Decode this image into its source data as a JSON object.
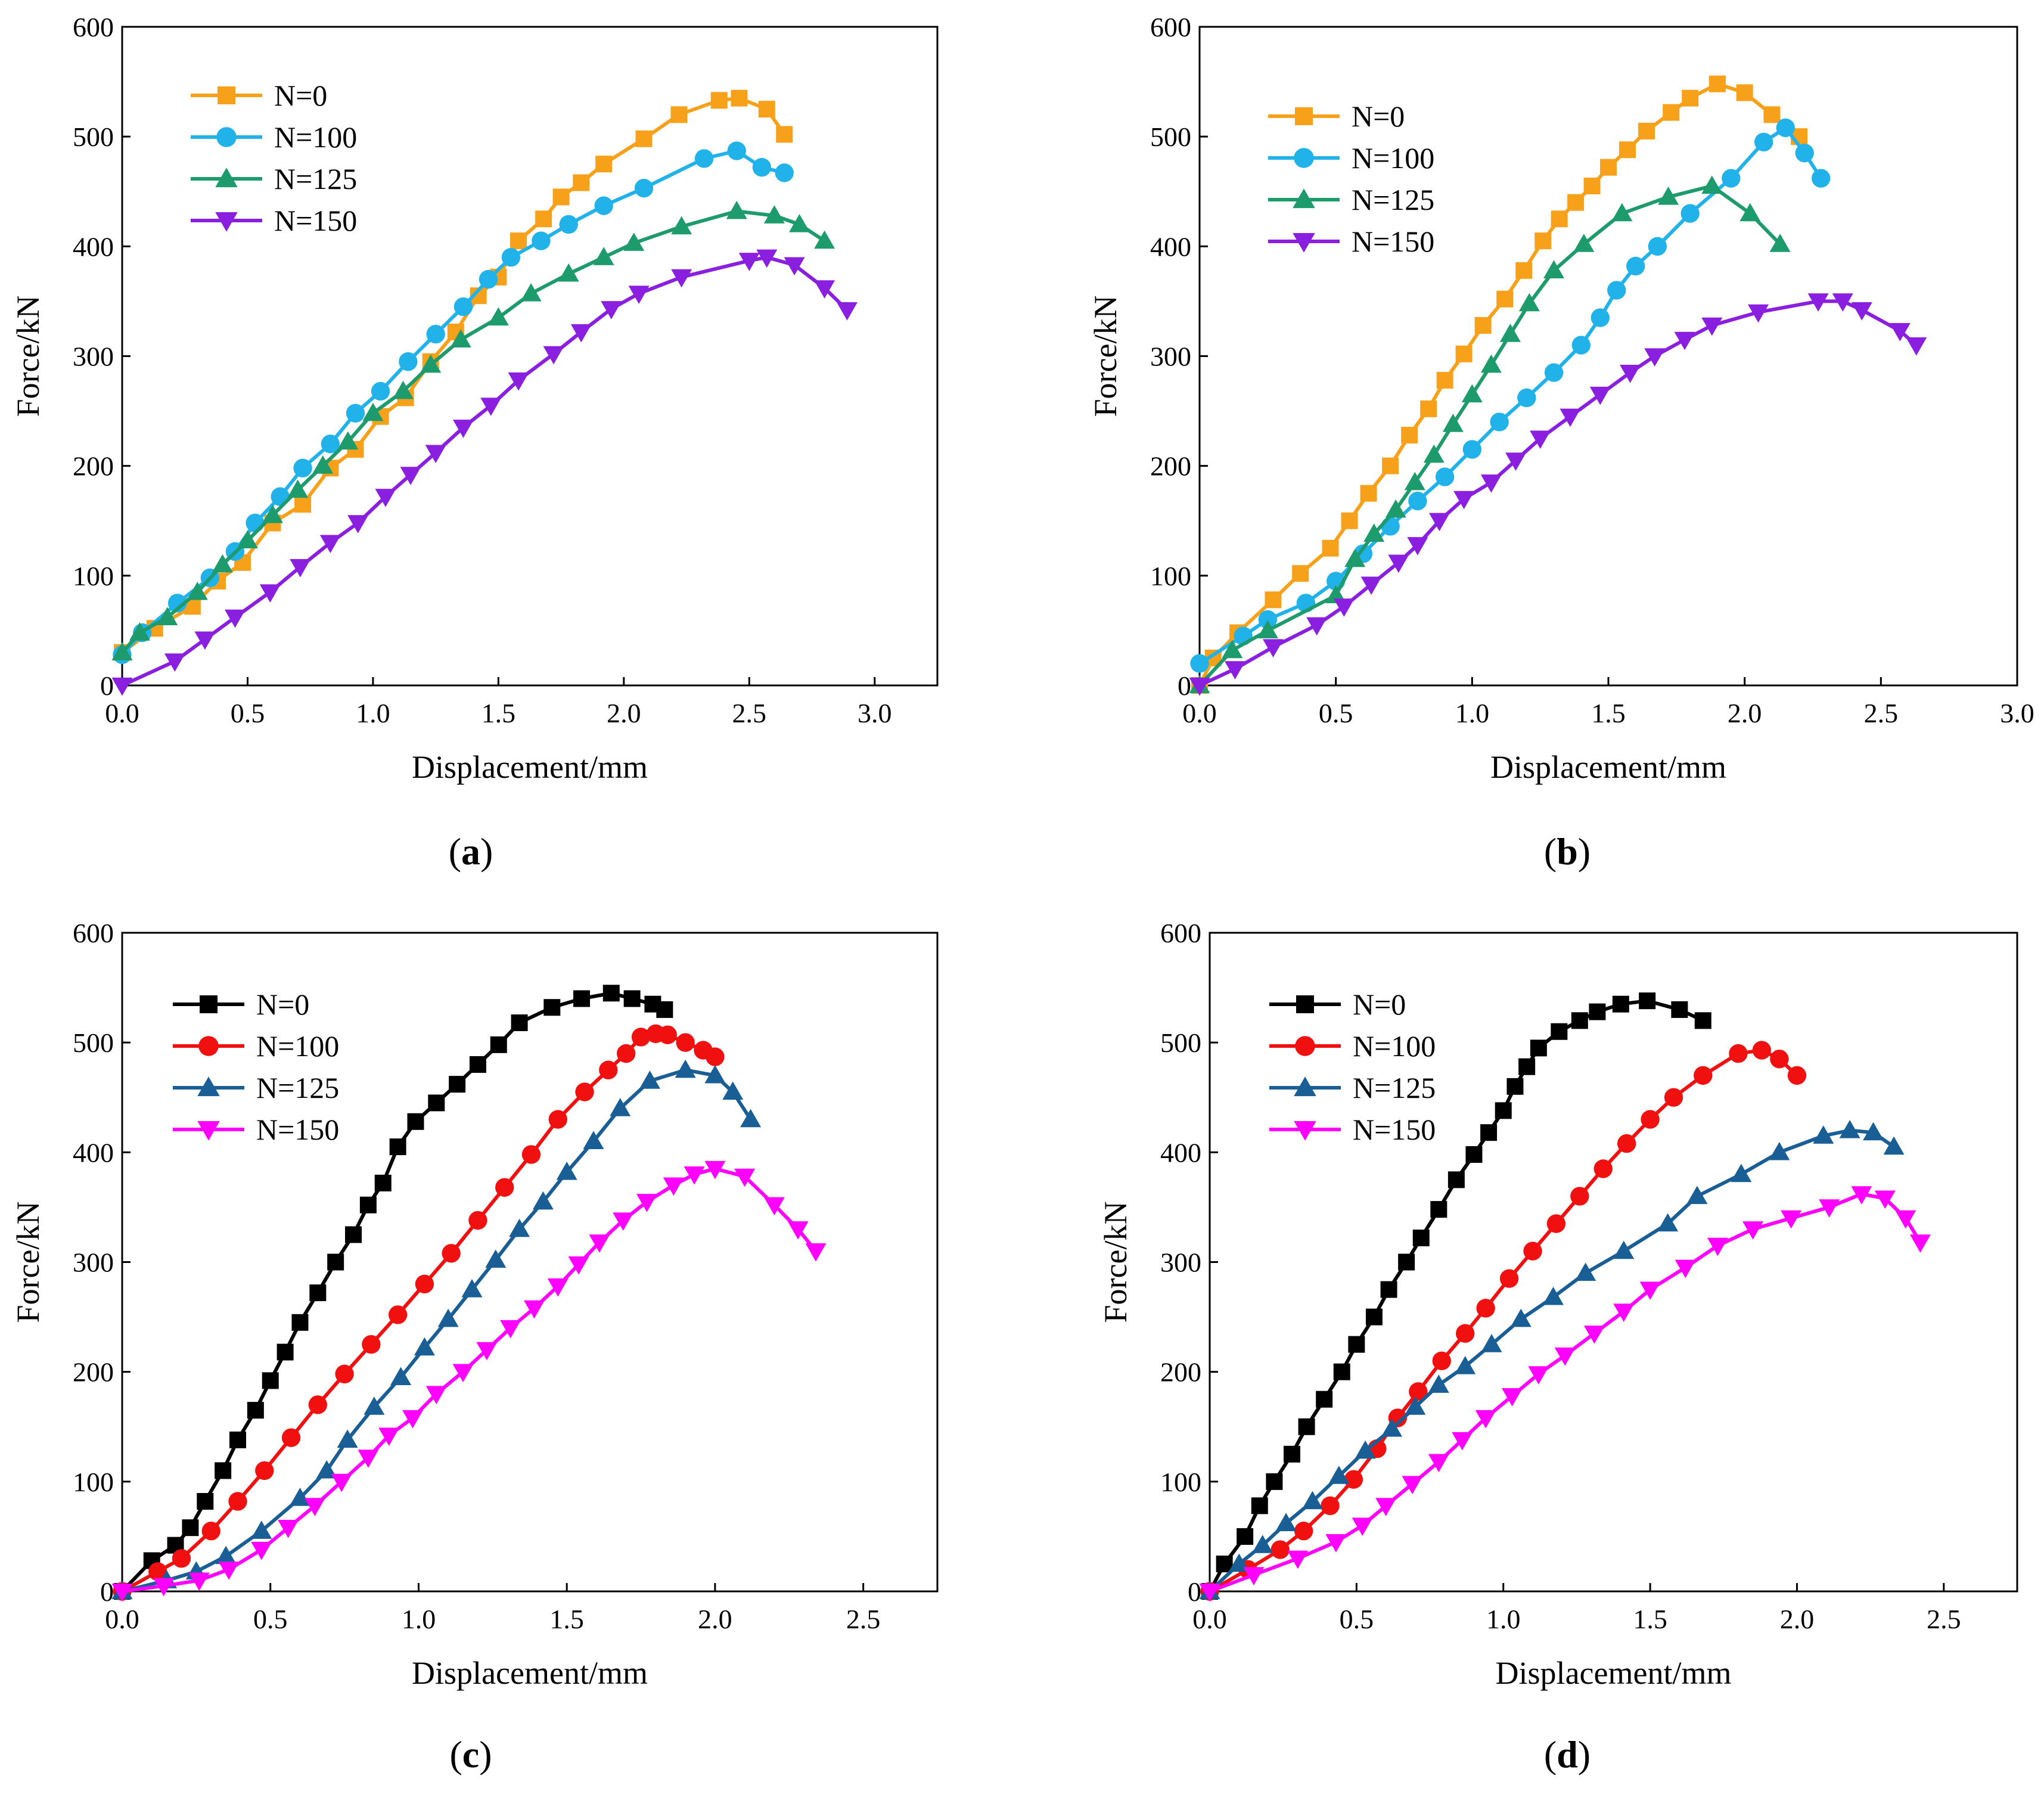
{
  "chart_data": [
    {
      "panel_label": "a",
      "type": "line",
      "xlabel": "Displacement/mm",
      "ylabel": "Force/kN",
      "xlim": [
        0,
        3.25
      ],
      "ylim": [
        0,
        600
      ],
      "xticks": [
        "0.0",
        "0.5",
        "1.0",
        "1.5",
        "2.0",
        "2.5",
        "3.0"
      ],
      "yticks": [
        "0",
        "100",
        "200",
        "300",
        "400",
        "500",
        "600"
      ],
      "legend_position": "top-left",
      "series": [
        {
          "name": "N=0",
          "color": "#F7A11A",
          "marker": "square",
          "x": [
            0.0,
            0.13,
            0.28,
            0.38,
            0.48,
            0.6,
            0.72,
            0.83,
            0.93,
            1.03,
            1.13,
            1.23,
            1.33,
            1.42,
            1.5,
            1.58,
            1.68,
            1.75,
            1.83,
            1.92,
            2.08,
            2.22,
            2.38,
            2.46,
            2.57,
            2.64
          ],
          "y": [
            30,
            52,
            72,
            95,
            112,
            148,
            165,
            198,
            215,
            245,
            262,
            295,
            322,
            355,
            372,
            405,
            425,
            445,
            458,
            475,
            498,
            520,
            533,
            535,
            525,
            502
          ]
        },
        {
          "name": "N=100",
          "color": "#20B2E8",
          "marker": "circle",
          "x": [
            0.0,
            0.08,
            0.22,
            0.35,
            0.45,
            0.53,
            0.63,
            0.72,
            0.83,
            0.93,
            1.03,
            1.14,
            1.25,
            1.36,
            1.46,
            1.55,
            1.67,
            1.78,
            1.92,
            2.08,
            2.32,
            2.45,
            2.55,
            2.64
          ],
          "y": [
            28,
            48,
            75,
            98,
            122,
            148,
            172,
            198,
            220,
            248,
            268,
            295,
            320,
            345,
            370,
            390,
            405,
            420,
            437,
            453,
            480,
            487,
            472,
            467
          ]
        },
        {
          "name": "N=125",
          "color": "#1E9B6C",
          "marker": "triangle-up",
          "x": [
            0.0,
            0.07,
            0.18,
            0.3,
            0.4,
            0.5,
            0.6,
            0.7,
            0.8,
            0.9,
            1.0,
            1.12,
            1.23,
            1.35,
            1.5,
            1.63,
            1.78,
            1.92,
            2.04,
            2.23,
            2.45,
            2.6,
            2.7,
            2.8
          ],
          "y": [
            30,
            48,
            62,
            85,
            110,
            132,
            155,
            178,
            200,
            222,
            248,
            268,
            292,
            315,
            335,
            357,
            375,
            390,
            403,
            418,
            432,
            428,
            420,
            405
          ]
        },
        {
          "name": "N=150",
          "color": "#8B1FE0",
          "marker": "triangle-down",
          "x": [
            0.0,
            0.21,
            0.33,
            0.45,
            0.59,
            0.71,
            0.83,
            0.94,
            1.05,
            1.15,
            1.25,
            1.36,
            1.47,
            1.58,
            1.72,
            1.83,
            1.95,
            2.06,
            2.23,
            2.5,
            2.57,
            2.68,
            2.8,
            2.89
          ],
          "y": [
            0,
            22,
            42,
            62,
            85,
            108,
            130,
            148,
            172,
            192,
            212,
            235,
            255,
            278,
            302,
            322,
            343,
            357,
            372,
            387,
            390,
            383,
            362,
            342
          ]
        }
      ]
    },
    {
      "panel_label": "b",
      "type": "line",
      "xlabel": "Displacement/mm",
      "ylabel": "Force/kN",
      "xlim": [
        0,
        3.0
      ],
      "ylim": [
        0,
        600
      ],
      "xticks": [
        "0.0",
        "0.5",
        "1.0",
        "1.5",
        "2.0",
        "2.5",
        "3.0"
      ],
      "yticks": [
        "0",
        "100",
        "200",
        "300",
        "400",
        "500",
        "600"
      ],
      "legend_position": "top-left",
      "series": [
        {
          "name": "N=0",
          "color": "#F7A11A",
          "marker": "square",
          "x": [
            0.0,
            0.05,
            0.14,
            0.27,
            0.37,
            0.48,
            0.55,
            0.62,
            0.7,
            0.77,
            0.84,
            0.9,
            0.97,
            1.04,
            1.12,
            1.19,
            1.26,
            1.32,
            1.38,
            1.44,
            1.5,
            1.57,
            1.64,
            1.73,
            1.8,
            1.9,
            2.0,
            2.1,
            2.2
          ],
          "y": [
            0,
            25,
            48,
            78,
            102,
            125,
            150,
            175,
            200,
            228,
            252,
            278,
            302,
            328,
            352,
            378,
            405,
            425,
            440,
            455,
            472,
            488,
            505,
            522,
            535,
            548,
            540,
            520,
            500
          ]
        },
        {
          "name": "N=100",
          "color": "#20B2E8",
          "marker": "circle",
          "x": [
            0.0,
            0.16,
            0.25,
            0.39,
            0.5,
            0.6,
            0.7,
            0.8,
            0.9,
            1.0,
            1.1,
            1.2,
            1.3,
            1.4,
            1.47,
            1.53,
            1.6,
            1.68,
            1.8,
            1.95,
            2.07,
            2.15,
            2.22,
            2.28
          ],
          "y": [
            20,
            45,
            60,
            75,
            95,
            120,
            145,
            168,
            190,
            215,
            240,
            262,
            285,
            310,
            335,
            360,
            382,
            400,
            430,
            462,
            495,
            508,
            485,
            462
          ]
        },
        {
          "name": "N=125",
          "color": "#1E9B6C",
          "marker": "triangle-up",
          "x": [
            0.0,
            0.12,
            0.25,
            0.5,
            0.57,
            0.64,
            0.72,
            0.79,
            0.86,
            0.93,
            1.0,
            1.07,
            1.14,
            1.21,
            1.3,
            1.41,
            1.55,
            1.72,
            1.88,
            2.02,
            2.13
          ],
          "y": [
            0,
            32,
            50,
            82,
            115,
            138,
            160,
            185,
            210,
            238,
            265,
            292,
            320,
            348,
            378,
            402,
            430,
            445,
            455,
            430,
            402
          ]
        },
        {
          "name": "N=150",
          "color": "#8B1FE0",
          "marker": "triangle-down",
          "x": [
            0.0,
            0.13,
            0.27,
            0.43,
            0.53,
            0.63,
            0.73,
            0.8,
            0.88,
            0.97,
            1.07,
            1.16,
            1.25,
            1.36,
            1.47,
            1.58,
            1.67,
            1.78,
            1.88,
            2.05,
            2.27,
            2.36,
            2.43,
            2.57,
            2.63
          ],
          "y": [
            0,
            15,
            35,
            55,
            72,
            92,
            112,
            128,
            150,
            170,
            185,
            205,
            225,
            245,
            265,
            285,
            300,
            315,
            328,
            340,
            350,
            350,
            342,
            323,
            310
          ]
        }
      ]
    },
    {
      "panel_label": "c",
      "type": "line",
      "xlabel": "Displacement/mm",
      "ylabel": "Force/kN",
      "xlim": [
        0,
        2.75
      ],
      "ylim": [
        0,
        600
      ],
      "xticks": [
        "0.0",
        "0.5",
        "1.0",
        "1.5",
        "2.0",
        "2.5"
      ],
      "yticks": [
        "0",
        "100",
        "200",
        "300",
        "400",
        "500",
        "600"
      ],
      "legend_position": "top-left",
      "series": [
        {
          "name": "N=0",
          "color": "#000000",
          "marker": "square",
          "x": [
            0.0,
            0.1,
            0.18,
            0.23,
            0.28,
            0.34,
            0.39,
            0.45,
            0.5,
            0.55,
            0.6,
            0.66,
            0.72,
            0.78,
            0.83,
            0.88,
            0.93,
            0.99,
            1.06,
            1.13,
            1.2,
            1.27,
            1.34,
            1.45,
            1.55,
            1.65,
            1.72,
            1.79,
            1.83
          ],
          "y": [
            0,
            28,
            42,
            58,
            82,
            110,
            138,
            165,
            192,
            218,
            245,
            272,
            300,
            325,
            352,
            372,
            405,
            428,
            445,
            462,
            480,
            498,
            518,
            532,
            540,
            545,
            540,
            535,
            530
          ]
        },
        {
          "name": "N=100",
          "color": "#F01010",
          "marker": "circle",
          "x": [
            0.0,
            0.12,
            0.2,
            0.3,
            0.39,
            0.48,
            0.57,
            0.66,
            0.75,
            0.84,
            0.93,
            1.02,
            1.11,
            1.2,
            1.29,
            1.38,
            1.47,
            1.56,
            1.64,
            1.7,
            1.75,
            1.8,
            1.84,
            1.9,
            1.96,
            2.0
          ],
          "y": [
            0,
            18,
            30,
            55,
            82,
            110,
            140,
            170,
            198,
            225,
            252,
            280,
            308,
            338,
            368,
            398,
            430,
            455,
            475,
            490,
            505,
            508,
            507,
            500,
            493,
            487
          ]
        },
        {
          "name": "N=125",
          "color": "#1A5E96",
          "marker": "triangle-up",
          "x": [
            0.0,
            0.15,
            0.25,
            0.35,
            0.47,
            0.6,
            0.69,
            0.76,
            0.85,
            0.94,
            1.02,
            1.1,
            1.18,
            1.26,
            1.34,
            1.42,
            1.5,
            1.59,
            1.68,
            1.78,
            1.9,
            2.0,
            2.06,
            2.12
          ],
          "y": [
            0,
            10,
            18,
            32,
            55,
            85,
            110,
            138,
            168,
            195,
            222,
            248,
            275,
            302,
            330,
            355,
            382,
            410,
            440,
            465,
            475,
            470,
            455,
            430
          ]
        },
        {
          "name": "N=150",
          "color": "#FF00FF",
          "marker": "triangle-down",
          "x": [
            0.0,
            0.14,
            0.26,
            0.36,
            0.47,
            0.56,
            0.65,
            0.74,
            0.83,
            0.9,
            0.98,
            1.06,
            1.15,
            1.23,
            1.31,
            1.39,
            1.47,
            1.54,
            1.61,
            1.69,
            1.77,
            1.86,
            1.93,
            2.0,
            2.1,
            2.2,
            2.28,
            2.34
          ],
          "y": [
            0,
            5,
            10,
            20,
            38,
            58,
            78,
            100,
            122,
            142,
            158,
            180,
            200,
            220,
            240,
            258,
            278,
            298,
            318,
            338,
            355,
            370,
            380,
            385,
            378,
            352,
            330,
            310
          ]
        }
      ]
    },
    {
      "panel_label": "d",
      "type": "line",
      "xlabel": "Displacement/mm",
      "ylabel": "Force/kN",
      "xlim": [
        0,
        2.75
      ],
      "ylim": [
        0,
        600
      ],
      "xticks": [
        "0.0",
        "0.5",
        "1.0",
        "1.5",
        "2.0",
        "2.5"
      ],
      "yticks": [
        "0",
        "100",
        "200",
        "300",
        "400",
        "500",
        "600"
      ],
      "legend_position": "top-left",
      "series": [
        {
          "name": "N=0",
          "color": "#000000",
          "marker": "square",
          "x": [
            0.0,
            0.05,
            0.12,
            0.17,
            0.22,
            0.28,
            0.33,
            0.39,
            0.45,
            0.5,
            0.56,
            0.61,
            0.67,
            0.72,
            0.78,
            0.84,
            0.9,
            0.95,
            1.0,
            1.04,
            1.08,
            1.12,
            1.19,
            1.26,
            1.32,
            1.4,
            1.49,
            1.6,
            1.68
          ],
          "y": [
            0,
            25,
            50,
            78,
            100,
            125,
            150,
            175,
            200,
            225,
            250,
            275,
            300,
            322,
            348,
            375,
            398,
            418,
            438,
            460,
            478,
            495,
            510,
            520,
            528,
            535,
            538,
            530,
            520
          ]
        },
        {
          "name": "N=100",
          "color": "#F01010",
          "marker": "circle",
          "x": [
            0.0,
            0.13,
            0.24,
            0.32,
            0.41,
            0.49,
            0.57,
            0.64,
            0.71,
            0.79,
            0.87,
            0.94,
            1.02,
            1.1,
            1.18,
            1.26,
            1.34,
            1.42,
            1.5,
            1.58,
            1.68,
            1.8,
            1.88,
            1.94,
            2.0
          ],
          "y": [
            0,
            20,
            38,
            55,
            78,
            102,
            130,
            158,
            182,
            210,
            235,
            258,
            285,
            310,
            335,
            360,
            385,
            408,
            430,
            450,
            470,
            490,
            493,
            485,
            470
          ]
        },
        {
          "name": "N=125",
          "color": "#1A5E96",
          "marker": "triangle-up",
          "x": [
            0.0,
            0.1,
            0.18,
            0.26,
            0.35,
            0.44,
            0.53,
            0.62,
            0.7,
            0.78,
            0.87,
            0.96,
            1.06,
            1.17,
            1.28,
            1.41,
            1.56,
            1.66,
            1.81,
            1.94,
            2.09,
            2.18,
            2.26,
            2.33
          ],
          "y": [
            0,
            25,
            42,
            62,
            82,
            105,
            128,
            148,
            168,
            188,
            205,
            225,
            248,
            268,
            290,
            310,
            335,
            360,
            380,
            400,
            415,
            420,
            418,
            405
          ]
        },
        {
          "name": "N=150",
          "color": "#FF00FF",
          "marker": "triangle-down",
          "x": [
            0.0,
            0.15,
            0.3,
            0.43,
            0.52,
            0.6,
            0.69,
            0.78,
            0.86,
            0.94,
            1.03,
            1.12,
            1.21,
            1.31,
            1.41,
            1.5,
            1.62,
            1.73,
            1.85,
            1.98,
            2.11,
            2.22,
            2.3,
            2.37,
            2.42
          ],
          "y": [
            0,
            15,
            30,
            45,
            60,
            78,
            98,
            118,
            138,
            158,
            178,
            198,
            215,
            235,
            255,
            275,
            295,
            315,
            330,
            340,
            350,
            362,
            358,
            340,
            318
          ]
        }
      ]
    }
  ]
}
